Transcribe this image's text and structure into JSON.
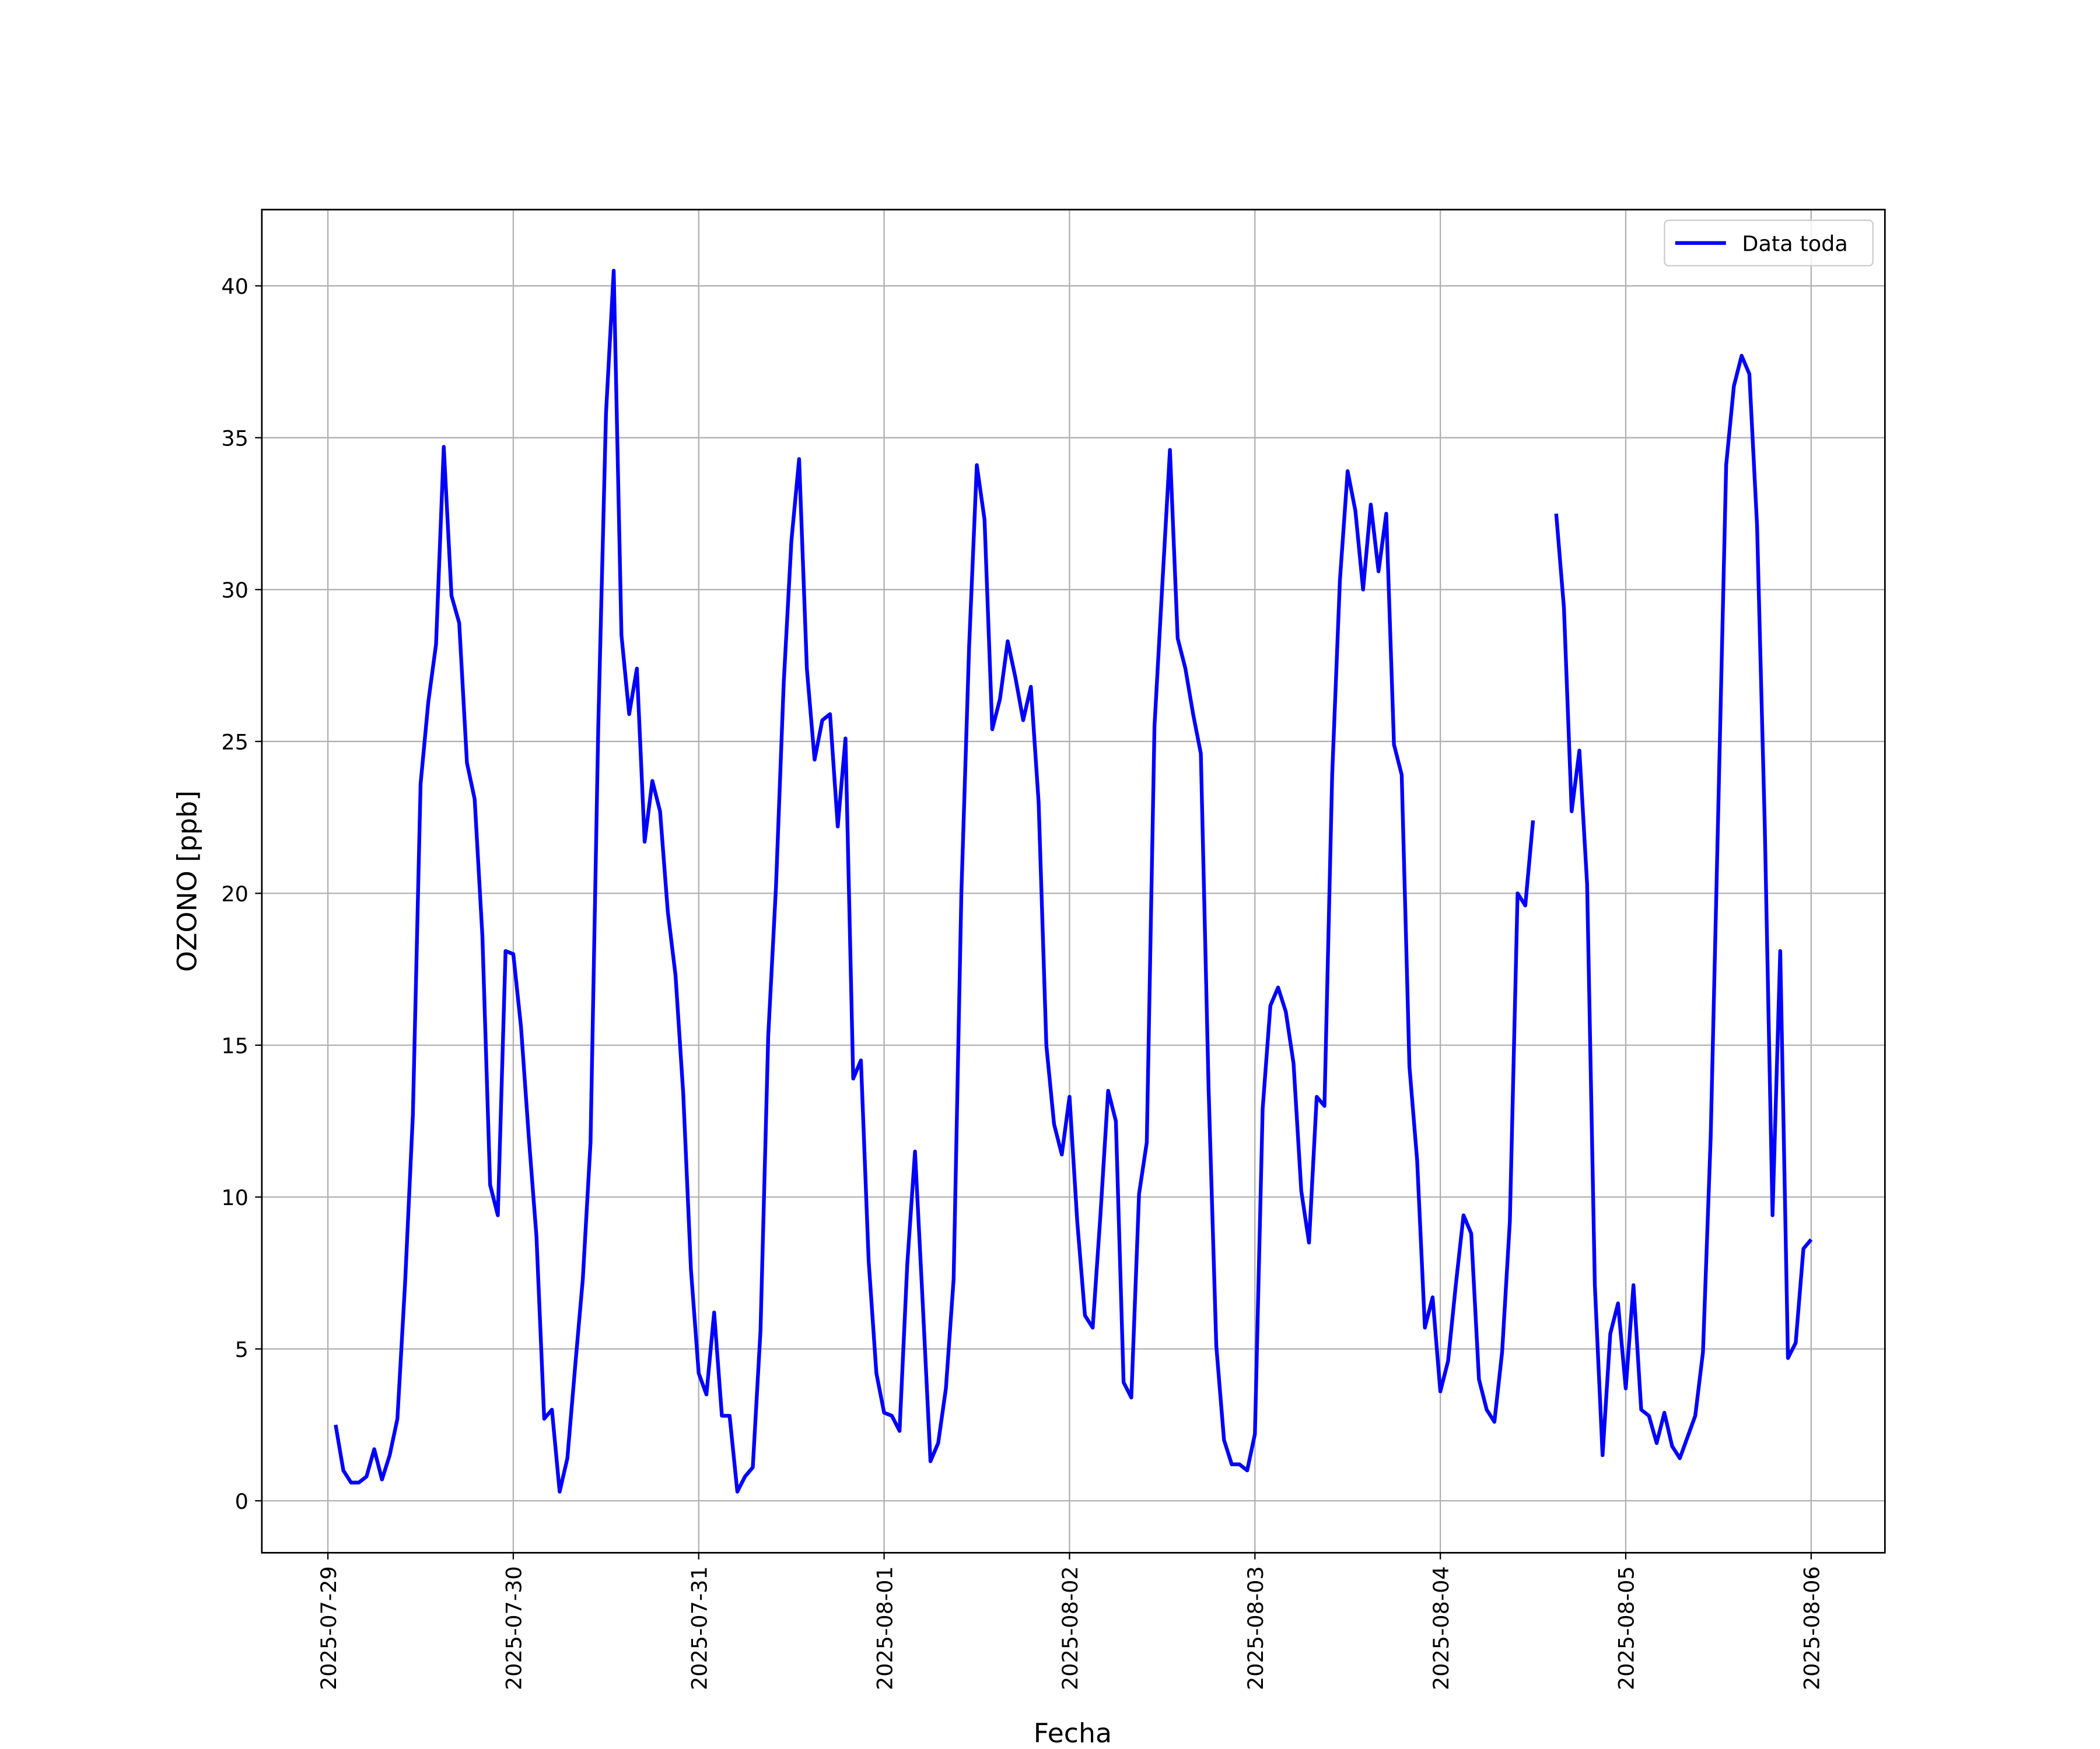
{
  "chart_data": {
    "type": "line",
    "xlabel": "Fecha",
    "ylabel": "OZONO [ppb]",
    "x": [
      "2025-07-29 01:00",
      "2025-07-29 02:00",
      "2025-07-29 03:00",
      "2025-07-29 04:00",
      "2025-07-29 05:00",
      "2025-07-29 06:00",
      "2025-07-29 07:00",
      "2025-07-29 08:00",
      "2025-07-29 09:00",
      "2025-07-29 10:00",
      "2025-07-29 11:00",
      "2025-07-29 12:00",
      "2025-07-29 13:00",
      "2025-07-29 14:00",
      "2025-07-29 15:00",
      "2025-07-29 16:00",
      "2025-07-29 17:00",
      "2025-07-29 18:00",
      "2025-07-29 19:00",
      "2025-07-29 20:00",
      "2025-07-29 21:00",
      "2025-07-29 22:00",
      "2025-07-29 23:00",
      "2025-07-30 00:00",
      "2025-07-30 01:00",
      "2025-07-30 02:00",
      "2025-07-30 03:00",
      "2025-07-30 04:00",
      "2025-07-30 05:00",
      "2025-07-30 06:00",
      "2025-07-30 07:00",
      "2025-07-30 08:00",
      "2025-07-30 09:00",
      "2025-07-30 10:00",
      "2025-07-30 11:00",
      "2025-07-30 12:00",
      "2025-07-30 13:00",
      "2025-07-30 14:00",
      "2025-07-30 15:00",
      "2025-07-30 16:00",
      "2025-07-30 17:00",
      "2025-07-30 18:00",
      "2025-07-30 19:00",
      "2025-07-30 20:00",
      "2025-07-30 21:00",
      "2025-07-30 22:00",
      "2025-07-30 23:00",
      "2025-07-31 00:00",
      "2025-07-31 01:00",
      "2025-07-31 02:00",
      "2025-07-31 03:00",
      "2025-07-31 04:00",
      "2025-07-31 05:00",
      "2025-07-31 06:00",
      "2025-07-31 07:00",
      "2025-07-31 08:00",
      "2025-07-31 09:00",
      "2025-07-31 10:00",
      "2025-07-31 11:00",
      "2025-07-31 12:00",
      "2025-07-31 13:00",
      "2025-07-31 14:00",
      "2025-07-31 15:00",
      "2025-07-31 16:00",
      "2025-07-31 17:00",
      "2025-07-31 18:00",
      "2025-07-31 19:00",
      "2025-07-31 20:00",
      "2025-07-31 21:00",
      "2025-07-31 22:00",
      "2025-07-31 23:00",
      "2025-08-01 00:00",
      "2025-08-01 01:00",
      "2025-08-01 02:00",
      "2025-08-01 03:00",
      "2025-08-01 04:00",
      "2025-08-01 05:00",
      "2025-08-01 06:00",
      "2025-08-01 07:00",
      "2025-08-01 08:00",
      "2025-08-01 09:00",
      "2025-08-01 10:00",
      "2025-08-01 11:00",
      "2025-08-01 12:00",
      "2025-08-01 13:00",
      "2025-08-01 14:00",
      "2025-08-01 15:00",
      "2025-08-01 16:00",
      "2025-08-01 17:00",
      "2025-08-01 18:00",
      "2025-08-01 19:00",
      "2025-08-01 20:00",
      "2025-08-01 21:00",
      "2025-08-01 22:00",
      "2025-08-01 23:00",
      "2025-08-02 00:00",
      "2025-08-02 01:00",
      "2025-08-02 02:00",
      "2025-08-02 03:00",
      "2025-08-02 04:00",
      "2025-08-02 05:00",
      "2025-08-02 06:00",
      "2025-08-02 07:00",
      "2025-08-02 08:00",
      "2025-08-02 09:00",
      "2025-08-02 10:00",
      "2025-08-02 11:00",
      "2025-08-02 12:00",
      "2025-08-02 13:00",
      "2025-08-02 14:00",
      "2025-08-02 15:00",
      "2025-08-02 16:00",
      "2025-08-02 17:00",
      "2025-08-02 18:00",
      "2025-08-02 19:00",
      "2025-08-02 20:00",
      "2025-08-02 21:00",
      "2025-08-02 22:00",
      "2025-08-02 23:00",
      "2025-08-03 00:00",
      "2025-08-03 01:00",
      "2025-08-03 02:00",
      "2025-08-03 03:00",
      "2025-08-03 04:00",
      "2025-08-03 05:00",
      "2025-08-03 06:00",
      "2025-08-03 07:00",
      "2025-08-03 08:00",
      "2025-08-03 09:00",
      "2025-08-03 10:00",
      "2025-08-03 11:00",
      "2025-08-03 12:00",
      "2025-08-03 13:00",
      "2025-08-03 14:00",
      "2025-08-03 15:00",
      "2025-08-03 16:00",
      "2025-08-03 17:00",
      "2025-08-03 18:00",
      "2025-08-03 19:00",
      "2025-08-03 20:00",
      "2025-08-03 21:00",
      "2025-08-03 22:00",
      "2025-08-03 23:00",
      "2025-08-04 00:00",
      "2025-08-04 01:00",
      "2025-08-04 02:00",
      "2025-08-04 03:00",
      "2025-08-04 04:00",
      "2025-08-04 05:00",
      "2025-08-04 06:00",
      "2025-08-04 07:00",
      "2025-08-04 08:00",
      "2025-08-04 09:00",
      "2025-08-04 10:00",
      "2025-08-04 11:00",
      "2025-08-04 12:00",
      "2025-08-04 13:00",
      "2025-08-04 14:00",
      "2025-08-04 15:00",
      "2025-08-04 16:00",
      "2025-08-04 17:00",
      "2025-08-04 18:00",
      "2025-08-04 19:00",
      "2025-08-04 20:00",
      "2025-08-04 21:00",
      "2025-08-04 22:00",
      "2025-08-04 23:00",
      "2025-08-05 00:00",
      "2025-08-05 01:00",
      "2025-08-05 02:00",
      "2025-08-05 03:00",
      "2025-08-05 04:00",
      "2025-08-05 05:00",
      "2025-08-05 06:00",
      "2025-08-05 07:00",
      "2025-08-05 08:00",
      "2025-08-05 09:00",
      "2025-08-05 10:00",
      "2025-08-05 11:00",
      "2025-08-05 12:00",
      "2025-08-05 13:00",
      "2025-08-05 14:00",
      "2025-08-05 15:00",
      "2025-08-05 16:00",
      "2025-08-05 17:00",
      "2025-08-05 18:00",
      "2025-08-05 19:00",
      "2025-08-05 20:00",
      "2025-08-05 21:00",
      "2025-08-05 22:00",
      "2025-08-05 23:00",
      "2025-08-06 00:00"
    ],
    "series": [
      {
        "name": "Data toda",
        "color": "#0000ff",
        "values": [
          2.5,
          1.0,
          0.6,
          0.6,
          0.8,
          1.7,
          0.7,
          1.5,
          2.7,
          7.2,
          12.7,
          23.6,
          26.3,
          28.2,
          34.7,
          29.8,
          28.9,
          24.3,
          23.1,
          18.6,
          10.4,
          9.4,
          18.1,
          18.0,
          15.6,
          12.0,
          8.7,
          2.7,
          3.0,
          0.3,
          1.4,
          4.4,
          7.3,
          11.8,
          25.5,
          35.8,
          40.5,
          28.5,
          25.9,
          27.4,
          21.7,
          23.7,
          22.7,
          19.4,
          17.3,
          13.4,
          7.6,
          4.2,
          3.5,
          6.2,
          2.8,
          2.8,
          0.3,
          0.8,
          1.1,
          5.6,
          15.3,
          20.2,
          26.9,
          31.6,
          34.3,
          27.4,
          24.4,
          25.7,
          25.9,
          22.2,
          25.1,
          13.9,
          14.5,
          7.9,
          4.2,
          2.9,
          2.8,
          2.3,
          7.8,
          11.5,
          6.5,
          1.3,
          1.9,
          3.7,
          7.3,
          20.0,
          28.1,
          34.1,
          32.3,
          25.4,
          26.4,
          28.3,
          27.1,
          25.7,
          26.8,
          23.0,
          15.0,
          12.4,
          11.4,
          13.3,
          9.2,
          6.1,
          5.7,
          9.4,
          13.5,
          12.5,
          3.9,
          3.4,
          10.1,
          11.8,
          25.5,
          30.1,
          34.6,
          28.4,
          27.4,
          25.9,
          24.6,
          13.6,
          5.1,
          2.0,
          1.2,
          1.2,
          1.0,
          2.2,
          12.9,
          16.3,
          16.9,
          16.1,
          14.4,
          10.2,
          8.5,
          13.3,
          13.0,
          23.9,
          30.3,
          33.9,
          32.6,
          30.0,
          32.8,
          30.6,
          32.5,
          24.9,
          23.9,
          14.3,
          11.2,
          5.7,
          6.7,
          3.6,
          4.6,
          7.1,
          9.4,
          8.8,
          4.0,
          3.0,
          2.6,
          4.9,
          9.2,
          20.0,
          19.6,
          22.4,
          null,
          null,
          32.5,
          29.4,
          22.7,
          24.7,
          20.3,
          7.1,
          1.5,
          5.5,
          6.5,
          3.7,
          7.1,
          3.0,
          2.8,
          1.9,
          2.9,
          1.8,
          1.4,
          2.1,
          2.8,
          4.9,
          12.0,
          23.0,
          34.1,
          36.7,
          37.7,
          37.1,
          32.1,
          22.2,
          9.4,
          18.1,
          4.7,
          5.2,
          8.3,
          8.6
        ]
      }
    ],
    "xlim": [
      "2025-07-28 15:27",
      "2025-08-06 09:33"
    ],
    "xticks": [
      "2025-07-29",
      "2025-07-30",
      "2025-07-31",
      "2025-08-01",
      "2025-08-02",
      "2025-08-03",
      "2025-08-04",
      "2025-08-05",
      "2025-08-06"
    ],
    "ylim": [
      -1.71,
      42.51
    ],
    "yticks": [
      0,
      5,
      10,
      15,
      20,
      25,
      30,
      35,
      40
    ],
    "grid": true,
    "legend": "upper right"
  }
}
